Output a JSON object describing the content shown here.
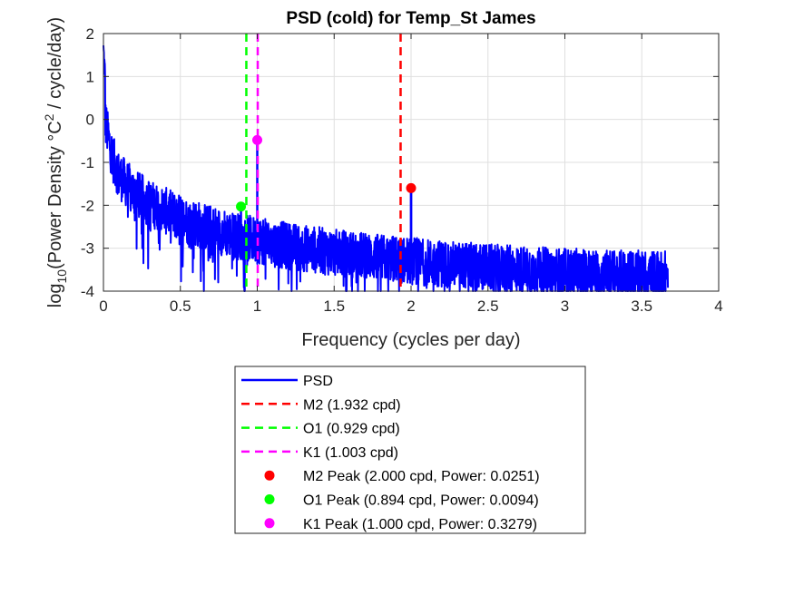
{
  "chart_data": {
    "type": "line",
    "title": "PSD (cold) for Temp_St James",
    "xlabel": "Frequency (cycles per day)",
    "ylabel": {
      "prefix": "log",
      "sub": "10",
      "mid": "(Power Density °C",
      "sup": "2",
      "suffix": " / cycle/day)"
    },
    "xlim": [
      0,
      4
    ],
    "ylim": [
      -4,
      2
    ],
    "xticks": [
      0,
      0.5,
      1,
      1.5,
      2,
      2.5,
      3,
      3.5,
      4
    ],
    "xtick_labels": [
      "0",
      "0.5",
      "1",
      "1.5",
      "2",
      "2.5",
      "3",
      "3.5",
      "4"
    ],
    "yticks": [
      -4,
      -3,
      -2,
      -1,
      0,
      1,
      2
    ],
    "ytick_labels": [
      "-4",
      "-3",
      "-2",
      "-1",
      "0",
      "1",
      "2"
    ],
    "grid": true,
    "legend_position": "below",
    "series": [
      {
        "name": "PSD",
        "color": "#0000ff",
        "envelope_x": [
          0,
          0.01,
          0.03,
          0.06,
          0.1,
          0.2,
          0.3,
          0.5,
          0.7,
          0.9,
          1.2,
          1.5,
          2.0,
          2.5,
          3.0,
          3.5,
          3.67
        ],
        "envelope_y": [
          0.5,
          0.0,
          -0.4,
          -0.9,
          -1.3,
          -1.7,
          -1.95,
          -2.3,
          -2.55,
          -2.75,
          -2.95,
          -3.1,
          -3.3,
          -3.45,
          -3.55,
          -3.6,
          -3.6
        ],
        "spikes": [
          {
            "x": 1.0,
            "y": -0.48
          },
          {
            "x": 2.0,
            "y": -1.6
          },
          {
            "x": 0.894,
            "y": -2.03
          },
          {
            "x": 3.0,
            "y": -3.0
          },
          {
            "x": 2.0,
            "y": -1.62
          }
        ],
        "x_max": 3.67
      }
    ],
    "vlines": [
      {
        "name": "M2 (1.932 cpd)",
        "x": 1.932,
        "color": "#ff0000"
      },
      {
        "name": "O1 (0.929 cpd)",
        "x": 0.929,
        "color": "#00ff00"
      },
      {
        "name": "K1 (1.003 cpd)",
        "x": 1.003,
        "color": "#ff00ff"
      }
    ],
    "peaks": [
      {
        "name": "M2 Peak (2.000 cpd, Power: 0.0251)",
        "x": 2.0,
        "y": -1.6,
        "color": "#ff0000"
      },
      {
        "name": "O1 Peak (0.894 cpd, Power: 0.0094)",
        "x": 0.894,
        "y": -2.03,
        "color": "#00ff00"
      },
      {
        "name": "K1 Peak (1.000 cpd, Power: 0.3279)",
        "x": 1.0,
        "y": -0.48,
        "color": "#ff00ff"
      }
    ]
  }
}
